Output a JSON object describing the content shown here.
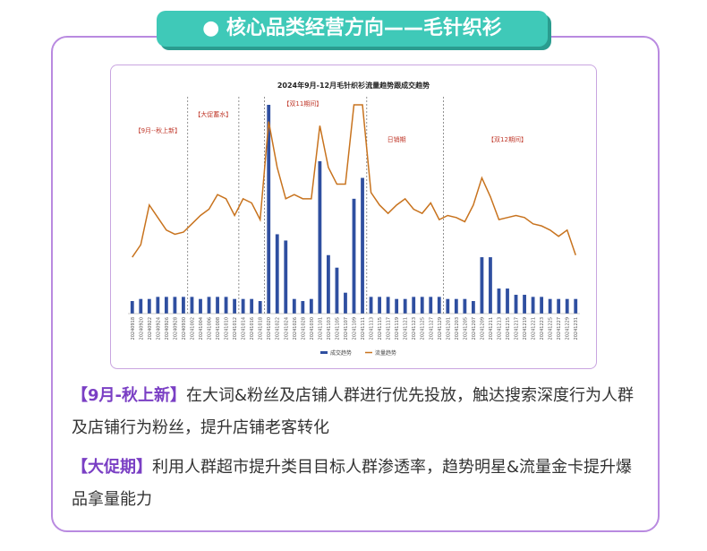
{
  "header": {
    "title": "核心品类经营方向——毛针织衫"
  },
  "chart_data": {
    "type": "combo",
    "title": "2024年9月-12月毛针织衫流量趋势跟成交趋势",
    "annotations": [
      "【9月--秋上新】",
      "【大促蓄水】",
      "【双11期间】",
      "日销期",
      "【双12期间】"
    ],
    "categories": [
      "20240918",
      "20240920",
      "20240922",
      "20240924",
      "20240926",
      "20240928",
      "20240930",
      "20241002",
      "20241004",
      "20241006",
      "20241008",
      "20241010",
      "20241012",
      "20241014",
      "20241016",
      "20241018",
      "20241020",
      "20241022",
      "20241024",
      "20241026",
      "20241028",
      "20241030",
      "20241101",
      "20241103",
      "20241105",
      "20241107",
      "20241109",
      "20241111",
      "20241113",
      "20241115",
      "20241117",
      "20241119",
      "20241121",
      "20241123",
      "20241125",
      "20241127",
      "20241129",
      "20241201",
      "20241203",
      "20241205",
      "20241207",
      "20241209",
      "20241211",
      "20241213",
      "20241215",
      "20241217",
      "20241219",
      "20241221",
      "20241223",
      "20241225",
      "20241227",
      "20241229",
      "20241231"
    ],
    "series": [
      {
        "name": "成交趋势",
        "color": "#2f4fa0",
        "kind": "bar",
        "values": [
          6,
          7,
          7,
          8,
          8,
          8,
          8,
          8,
          7,
          8,
          8,
          8,
          7,
          7,
          7,
          6,
          100,
          38,
          35,
          7,
          6,
          7,
          73,
          28,
          22,
          10,
          55,
          65,
          8,
          8,
          8,
          7,
          7,
          8,
          8,
          8,
          8,
          7,
          7,
          7,
          6,
          27,
          27,
          12,
          12,
          9,
          9,
          8,
          8,
          7,
          7,
          7,
          7
        ]
      },
      {
        "name": "流量趋势",
        "color": "#c8731e",
        "kind": "line",
        "values": [
          27,
          33,
          52,
          46,
          40,
          38,
          39,
          43,
          47,
          50,
          57,
          55,
          47,
          55,
          53,
          45,
          92,
          70,
          55,
          57,
          55,
          55,
          90,
          70,
          62,
          62,
          100,
          100,
          58,
          52,
          48,
          52,
          55,
          50,
          48,
          53,
          45,
          47,
          46,
          44,
          52,
          65,
          56,
          45,
          46,
          47,
          46,
          43,
          42,
          40,
          37,
          40,
          28
        ]
      }
    ],
    "ylim": [
      0,
      100
    ]
  },
  "paragraphs": [
    {
      "label": "【9月-秋上新】",
      "text": "在大词&粉丝及店铺人群进行优先投放，触达搜索深度行为人群及店铺行为粉丝，提升店铺老客转化"
    },
    {
      "label": "【大促期】",
      "text": "利用人群超市提升类目目标人群渗透率，趋势明星&流量金卡提升爆品拿量能力"
    }
  ]
}
